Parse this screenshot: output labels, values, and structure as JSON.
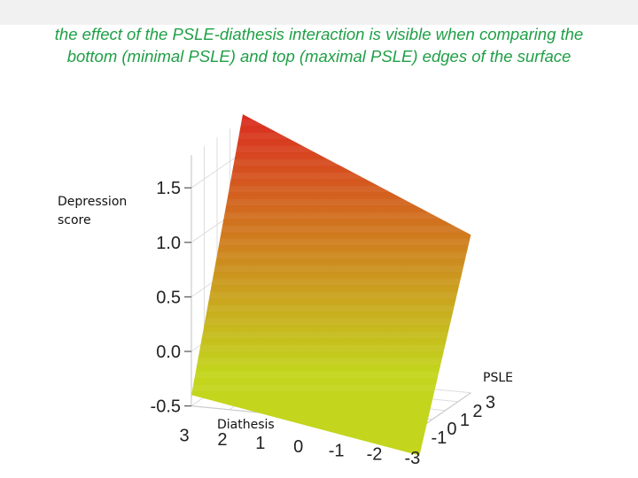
{
  "caption": {
    "line1": "the effect of the PSLE-diathesis interaction is visible when comparing the",
    "line2": "bottom (minimal PSLE) and top (maximal PSLE) edges of the surface"
  },
  "colors": {
    "caption": "#1f9f46",
    "surface_high": "#dd1a20",
    "surface_low": "#c3d51d",
    "grid": "#dddddd"
  },
  "chart_data": {
    "type": "surface",
    "z_label_lines": [
      "Depression",
      "score"
    ],
    "x_label": "Diathesis",
    "y_label": "PSLE",
    "z_ticks": [
      "1.5",
      "1.0",
      "0.5",
      "0.0",
      "-0.5"
    ],
    "x_ticks": [
      "3",
      "2",
      "1",
      "0",
      "-1",
      "-2",
      "-3"
    ],
    "y_ticks": [
      "3",
      "2",
      "1",
      "0",
      "-1"
    ],
    "z_range": [
      -0.5,
      1.8
    ],
    "corners": [
      {
        "diathesis": 3,
        "psle": -1,
        "depression": -0.4
      },
      {
        "diathesis": -3,
        "psle": -1,
        "depression": -0.75
      },
      {
        "diathesis": -3,
        "psle": 3,
        "depression": 0.95
      },
      {
        "diathesis": 3,
        "psle": 3,
        "depression": 1.85
      }
    ]
  }
}
